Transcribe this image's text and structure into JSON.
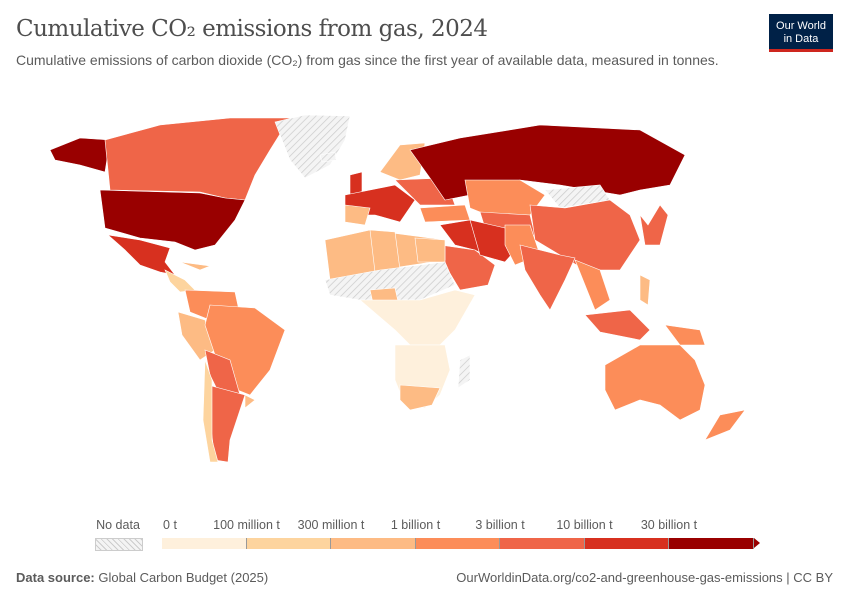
{
  "header": {
    "title": "Cumulative CO₂ emissions from gas, 2024",
    "subtitle": "Cumulative emissions of carbon dioxide (CO₂) from gas since the first year of available data, measured in tonnes.",
    "logo_line1": "Our World",
    "logo_line2": "in Data"
  },
  "chart_data": {
    "type": "choropleth",
    "year": 2024,
    "legend": {
      "no_data_label": "No data",
      "bins": [
        "0 t",
        "100 million t",
        "300 million t",
        "1 billion t",
        "3 billion t",
        "10 billion t",
        "30 billion t"
      ],
      "colors": [
        "#fef0dc",
        "#fdd49e",
        "#fdbb84",
        "#fc8d59",
        "#ef6548",
        "#d7301f",
        "#990000"
      ]
    },
    "regions": [
      {
        "name": "United States",
        "bin": 6
      },
      {
        "name": "Russia",
        "bin": 6
      },
      {
        "name": "Canada",
        "bin": 4
      },
      {
        "name": "Mexico",
        "bin": 5
      },
      {
        "name": "Brazil",
        "bin": 3
      },
      {
        "name": "Argentina",
        "bin": 4
      },
      {
        "name": "China",
        "bin": 4
      },
      {
        "name": "India",
        "bin": 4
      },
      {
        "name": "Australia",
        "bin": 3
      },
      {
        "name": "Kazakhstan",
        "bin": 3
      },
      {
        "name": "Iran",
        "bin": 5
      },
      {
        "name": "Saudi Arabia",
        "bin": 4
      },
      {
        "name": "Japan",
        "bin": 4
      },
      {
        "name": "Indonesia",
        "bin": 4
      },
      {
        "name": "Algeria",
        "bin": 2
      },
      {
        "name": "Greenland",
        "bin": null
      }
    ]
  },
  "footer": {
    "source_label": "Data source:",
    "source": "Global Carbon Budget (2025)",
    "url": "OurWorldinData.org/co2-and-greenhouse-gas-emissions | CC BY"
  }
}
